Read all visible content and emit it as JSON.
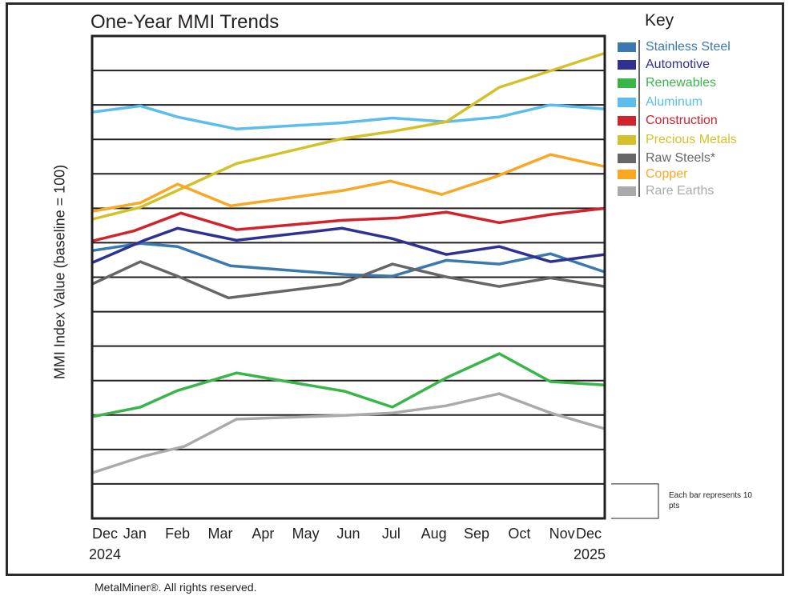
{
  "chart_data": {
    "type": "line",
    "title": "One-Year MMI Trends",
    "ylabel": "MMI Index Value (baseline = 100)",
    "xlabel": "",
    "x_ticks": [
      "Dec",
      "Jan",
      "Feb",
      "Mar",
      "Apr",
      "May",
      "Jun",
      "Jul",
      "Aug",
      "Sep",
      "Oct",
      "Nov",
      "Dec"
    ],
    "x_year_labels": {
      "start": "2024",
      "end": "2025"
    },
    "xlim": [
      0,
      12
    ],
    "ylim": [
      0,
      140
    ],
    "grid": "horizontal, every 10 pts",
    "legend_title": "Key",
    "legend_position": "right",
    "scale_note": "Each bar represents 10 pts",
    "series": [
      {
        "name": "Stainless Steel",
        "color": "#3a78b0",
        "points": [
          [
            0,
            77.7
          ],
          [
            1.13,
            79.8
          ],
          [
            2.0,
            78.9
          ],
          [
            3.24,
            73.3
          ],
          [
            5.91,
            70.8
          ],
          [
            7.03,
            70.3
          ],
          [
            8.29,
            74.9
          ],
          [
            9.53,
            73.8
          ],
          [
            10.73,
            76.8
          ],
          [
            12,
            71.5
          ]
        ]
      },
      {
        "name": "Automotive",
        "color": "#2e3192",
        "points": [
          [
            0,
            74.2
          ],
          [
            1.22,
            80.7
          ],
          [
            2.0,
            84.2
          ],
          [
            3.38,
            80.7
          ],
          [
            5.85,
            84.2
          ],
          [
            7.03,
            81.2
          ],
          [
            8.29,
            76.6
          ],
          [
            9.53,
            78.9
          ],
          [
            10.73,
            74.5
          ],
          [
            12,
            76.6
          ]
        ]
      },
      {
        "name": "Renewables",
        "color": "#39b54a",
        "points": [
          [
            0,
            29.5
          ],
          [
            1.13,
            32.3
          ],
          [
            2.0,
            37.1
          ],
          [
            3.38,
            42.2
          ],
          [
            5.91,
            36.9
          ],
          [
            7.03,
            32.3
          ],
          [
            8.29,
            40.8
          ],
          [
            9.53,
            47.8
          ],
          [
            10.73,
            39.7
          ],
          [
            12,
            38.7
          ]
        ]
      },
      {
        "name": "Aluminum",
        "color": "#5bbdeb",
        "points": [
          [
            0,
            117.9
          ],
          [
            1.13,
            119.7
          ],
          [
            2.0,
            116.5
          ],
          [
            3.38,
            113.0
          ],
          [
            5.85,
            114.8
          ],
          [
            7.03,
            116.2
          ],
          [
            8.29,
            115.1
          ],
          [
            9.53,
            116.5
          ],
          [
            10.73,
            120.0
          ],
          [
            12,
            118.8
          ]
        ]
      },
      {
        "name": "Construction",
        "color": "#d2232a",
        "points": [
          [
            0,
            80.5
          ],
          [
            0.99,
            83.5
          ],
          [
            2.08,
            88.6
          ],
          [
            3.38,
            83.8
          ],
          [
            5.85,
            86.5
          ],
          [
            7.16,
            87.2
          ],
          [
            8.29,
            88.9
          ],
          [
            9.53,
            85.8
          ],
          [
            10.73,
            88.2
          ],
          [
            12,
            90.0
          ]
        ]
      },
      {
        "name": "Precious Metals",
        "color": "#d4c12a",
        "points": [
          [
            0,
            86.8
          ],
          [
            1.13,
            90.3
          ],
          [
            3.38,
            103.0
          ],
          [
            5.85,
            110.2
          ],
          [
            7.03,
            112.3
          ],
          [
            8.29,
            115.1
          ],
          [
            9.53,
            125.1
          ],
          [
            10.73,
            129.9
          ],
          [
            12,
            135.0
          ]
        ]
      },
      {
        "name": "Raw Steels*",
        "color": "#666666",
        "points": [
          [
            0,
            68.0
          ],
          [
            1.13,
            74.5
          ],
          [
            2.0,
            70.3
          ],
          [
            3.19,
            64.0
          ],
          [
            5.81,
            68.0
          ],
          [
            7.03,
            73.8
          ],
          [
            8.29,
            70.1
          ],
          [
            9.53,
            67.3
          ],
          [
            10.73,
            69.8
          ],
          [
            12,
            67.3
          ]
        ]
      },
      {
        "name": "Copper",
        "color": "#f9a825",
        "points": [
          [
            0,
            89.1
          ],
          [
            1.13,
            91.6
          ],
          [
            2.0,
            97.0
          ],
          [
            3.24,
            90.7
          ],
          [
            5.85,
            95.1
          ],
          [
            6.98,
            97.9
          ],
          [
            8.18,
            94.0
          ],
          [
            9.47,
            99.3
          ],
          [
            10.73,
            105.6
          ],
          [
            12,
            102.1
          ]
        ]
      },
      {
        "name": "Rare Earths",
        "color": "#aaaaaa",
        "points": [
          [
            0,
            13.2
          ],
          [
            1.22,
            18.1
          ],
          [
            2.16,
            20.9
          ],
          [
            3.38,
            28.8
          ],
          [
            5.91,
            29.9
          ],
          [
            7.03,
            30.6
          ],
          [
            8.29,
            32.7
          ],
          [
            9.53,
            36.2
          ],
          [
            10.73,
            30.6
          ],
          [
            12,
            26.0
          ]
        ]
      }
    ]
  },
  "footer": "MetalMiner®. All rights reserved."
}
